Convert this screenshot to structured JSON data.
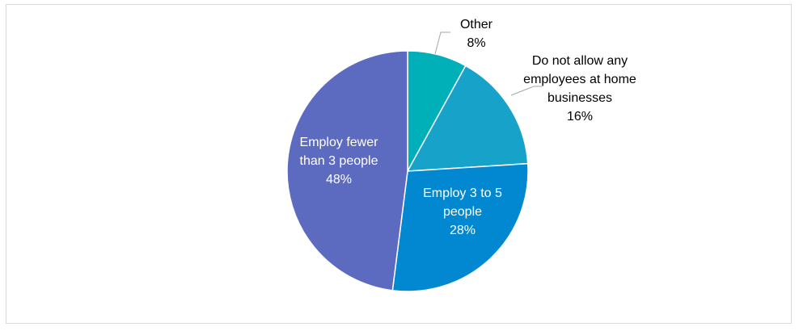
{
  "chart_data": {
    "type": "pie",
    "title": "",
    "slices": [
      {
        "label_lines": [
          "Other"
        ],
        "percent_label": "8%",
        "value": 8,
        "color": "#00b0b9",
        "label_style": "outside-dark"
      },
      {
        "label_lines": [
          "Do not allow any",
          "employees at home",
          "businesses"
        ],
        "percent_label": "16%",
        "value": 16,
        "color": "#17a2c9",
        "label_style": "outside-dark"
      },
      {
        "label_lines": [
          "Employ 3 to 5",
          "people"
        ],
        "percent_label": "28%",
        "value": 28,
        "color": "#0288d1",
        "label_style": "inside-light"
      },
      {
        "label_lines": [
          "Employ fewer",
          "than 3 people"
        ],
        "percent_label": "48%",
        "value": 48,
        "color": "#5c6bc0",
        "label_style": "inside-light"
      }
    ],
    "start_angle_deg": 0,
    "direction": "clockwise",
    "legend": "none"
  }
}
